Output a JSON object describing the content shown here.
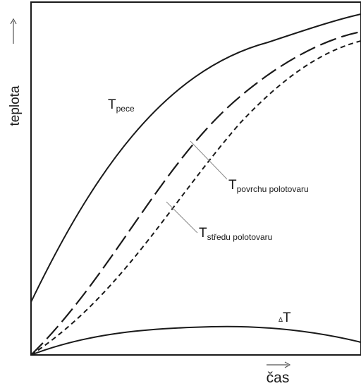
{
  "axes": {
    "y_label": "teplota",
    "x_label": "čas"
  },
  "labels": {
    "pece": {
      "main": "T",
      "sub": "pece"
    },
    "povrchu": {
      "main": "T",
      "sub": "povrchu polotovaru"
    },
    "stredu": {
      "main": "T",
      "sub": "středu polotovaru"
    },
    "delta": {
      "pre": "Δ",
      "main": "T"
    }
  },
  "colors": {
    "ink": "#1a1a1a",
    "leader": "#8a8a8a",
    "background": "#ffffff"
  }
}
